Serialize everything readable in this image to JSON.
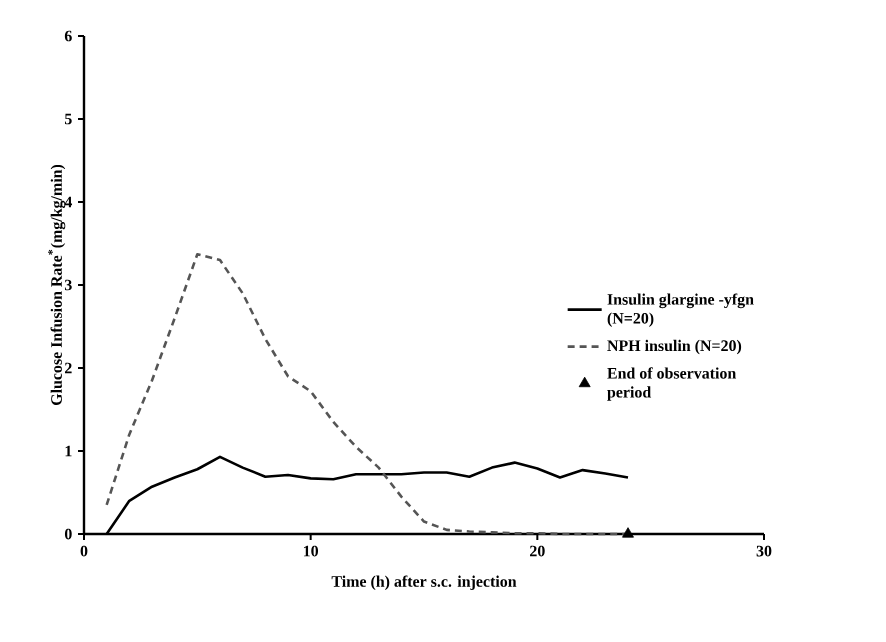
{
  "chart_data": {
    "type": "line",
    "xlabel": "Time (h) after s.c. injection",
    "ylabel": "Glucose Infusion Rate$^{*}$(mg/kg/min)",
    "xlim": [
      0,
      30
    ],
    "xticks": [
      0,
      10,
      20,
      30
    ],
    "ylim": [
      0,
      6
    ],
    "yticks": [
      0,
      1,
      2,
      3,
      4,
      5,
      6
    ],
    "legend": "right",
    "grid": false,
    "series": [
      {
        "name": "Insulin glargine -yfgn (N=20)",
        "color": "#000000",
        "line_style": "solid",
        "x": [
          1,
          2,
          3,
          4,
          5,
          6,
          7,
          8,
          9,
          10,
          11,
          12,
          13,
          14,
          15,
          16,
          17,
          18,
          19,
          20,
          21,
          22,
          23,
          24
        ],
        "values": [
          0,
          0.4,
          0.57,
          0.68,
          0.78,
          0.93,
          0.8,
          0.69,
          0.71,
          0.67,
          0.66,
          0.72,
          0.72,
          0.72,
          0.74,
          0.74,
          0.69,
          0.8,
          0.86,
          0.79,
          0.68,
          0.77,
          0.73,
          0.68
        ]
      },
      {
        "name": "NPH insulin (N=20)",
        "color": "#555555",
        "line_style": "dashed",
        "x": [
          1,
          2,
          3,
          4,
          5,
          6,
          7,
          8,
          9,
          10,
          11,
          12,
          13,
          14,
          15,
          16,
          17,
          18,
          19,
          20,
          21,
          22,
          23,
          24
        ],
        "values": [
          0.35,
          1.2,
          1.85,
          2.6,
          3.37,
          3.3,
          2.9,
          2.35,
          1.9,
          1.72,
          1.35,
          1.05,
          0.8,
          0.45,
          0.15,
          0.05,
          0.03,
          0.02,
          0.01,
          0.01,
          0,
          0,
          0,
          0
        ]
      },
      {
        "name": "End of observation period",
        "type": "scatter",
        "marker": "triangle",
        "color": "#000000",
        "x": [
          24
        ],
        "values": [
          0
        ]
      }
    ]
  }
}
